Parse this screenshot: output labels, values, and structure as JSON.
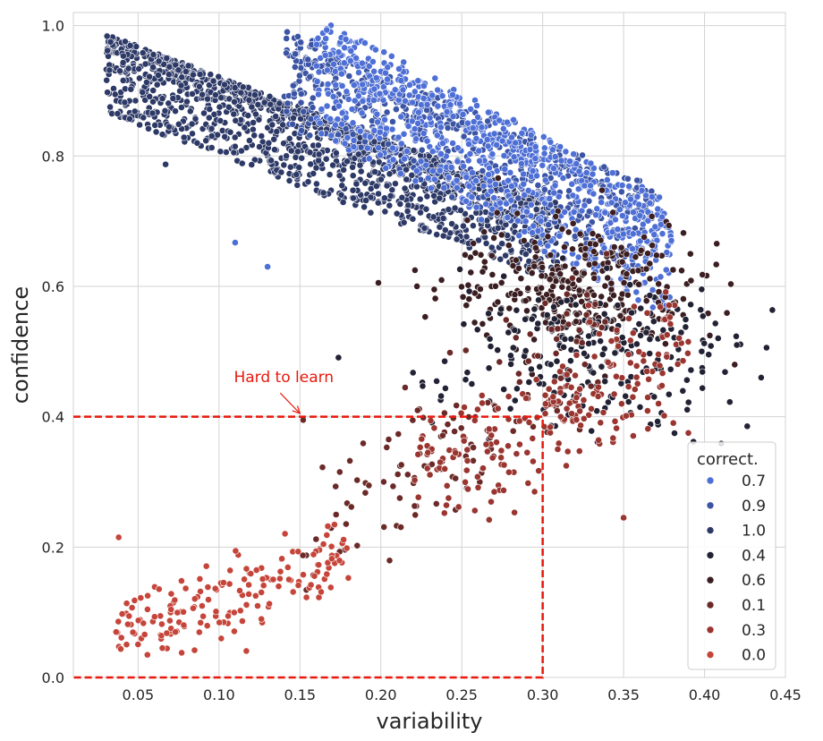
{
  "chart_data": {
    "type": "scatter",
    "xlabel": "variability",
    "ylabel": "confidence",
    "xlim": [
      0.01,
      0.45
    ],
    "ylim": [
      0.0,
      1.02
    ],
    "x_ticks": [
      "0.05",
      "0.10",
      "0.15",
      "0.20",
      "0.25",
      "0.30",
      "0.35",
      "0.40",
      "0.45"
    ],
    "y_ticks": [
      "0.0",
      "0.2",
      "0.4",
      "0.6",
      "0.8",
      "1.0"
    ],
    "grid": true,
    "legend": {
      "title": "correct.",
      "placement": "lower-right",
      "entries": [
        {
          "label": "0.7",
          "color": "#4e6fd6"
        },
        {
          "label": "0.9",
          "color": "#3b54a4"
        },
        {
          "label": "1.0",
          "color": "#2d3966"
        },
        {
          "label": "0.4",
          "color": "#222235"
        },
        {
          "label": "0.6",
          "color": "#3b1e22"
        },
        {
          "label": "0.1",
          "color": "#6b2a28"
        },
        {
          "label": "0.3",
          "color": "#9a3530"
        },
        {
          "label": "0.0",
          "color": "#c6453a"
        }
      ]
    },
    "annotation": {
      "text": "Hard to learn",
      "color": "#e8190c",
      "text_at": [
        0.15,
        0.45
      ],
      "arrow_to": [
        0.15,
        0.405
      ],
      "region": {
        "x": [
          0.01,
          0.3
        ],
        "y": [
          0.0,
          0.4
        ]
      }
    },
    "clusters": [
      {
        "label": "1.0",
        "color": "#2d3966",
        "count": 1500,
        "dist": "band",
        "x": [
          0.03,
          0.31
        ],
        "y_at_x0": 0.975,
        "slope": -0.93,
        "spread_up": 0.012,
        "spread_down": 0.11,
        "seed": 11
      },
      {
        "label": "0.9",
        "color": "#3b54a4",
        "count": 650,
        "dist": "band",
        "x": [
          0.14,
          0.37
        ],
        "y_at_x0": 0.965,
        "slope": -1.05,
        "spread_up": 0.03,
        "spread_down": 0.12,
        "seed": 12
      },
      {
        "label": "0.7",
        "color": "#4e6fd6",
        "count": 800,
        "dist": "band",
        "x": [
          0.16,
          0.38
        ],
        "y_at_x0": 0.975,
        "slope": -1.3,
        "spread_up": 0.04,
        "spread_down": 0.14,
        "seed": 13
      },
      {
        "label": "0.6",
        "color": "#3b1e22",
        "count": 330,
        "dist": "gauss",
        "center": [
          0.32,
          0.6
        ],
        "sd": [
          0.04,
          0.05
        ],
        "seed": 14
      },
      {
        "label": "0.4",
        "color": "#222235",
        "count": 230,
        "dist": "gauss",
        "center": [
          0.33,
          0.5
        ],
        "sd": [
          0.045,
          0.06
        ],
        "seed": 15
      },
      {
        "label": "0.1",
        "color": "#6b2a28",
        "count": 140,
        "dist": "linear",
        "x": [
          0.15,
          0.34
        ],
        "y_at_x0": 0.2,
        "slope": 1.8,
        "spread": 0.09,
        "seed": 16
      },
      {
        "label": "0.3",
        "color": "#9a3530",
        "count": 230,
        "dist": "linear",
        "x": [
          0.22,
          0.39
        ],
        "y_at_x0": 0.3,
        "slope": 1.25,
        "spread": 0.08,
        "seed": 17
      },
      {
        "label": "0.0",
        "color": "#c6453a",
        "count": 170,
        "dist": "linear",
        "x": [
          0.035,
          0.18
        ],
        "y_at_x0": 0.06,
        "slope": 0.85,
        "spread": 0.05,
        "seed": 18
      }
    ],
    "points": [
      {
        "x": 0.033,
        "y": 0.975,
        "label": "1.0"
      },
      {
        "x": 0.067,
        "y": 0.787,
        "label": "1.0"
      },
      {
        "x": 0.11,
        "y": 0.667,
        "label": "0.7"
      },
      {
        "x": 0.13,
        "y": 0.63,
        "label": "0.7"
      },
      {
        "x": 0.435,
        "y": 0.46,
        "label": "0.4"
      },
      {
        "x": 0.42,
        "y": 0.51,
        "label": "0.4"
      },
      {
        "x": 0.038,
        "y": 0.215,
        "label": "0.0"
      },
      {
        "x": 0.065,
        "y": 0.045,
        "label": "0.0"
      },
      {
        "x": 0.152,
        "y": 0.395,
        "label": "0.1"
      },
      {
        "x": 0.35,
        "y": 0.245,
        "label": "0.3"
      },
      {
        "x": 0.39,
        "y": 0.375,
        "label": "0.3"
      },
      {
        "x": 0.295,
        "y": 0.285,
        "label": "0.3"
      }
    ]
  }
}
